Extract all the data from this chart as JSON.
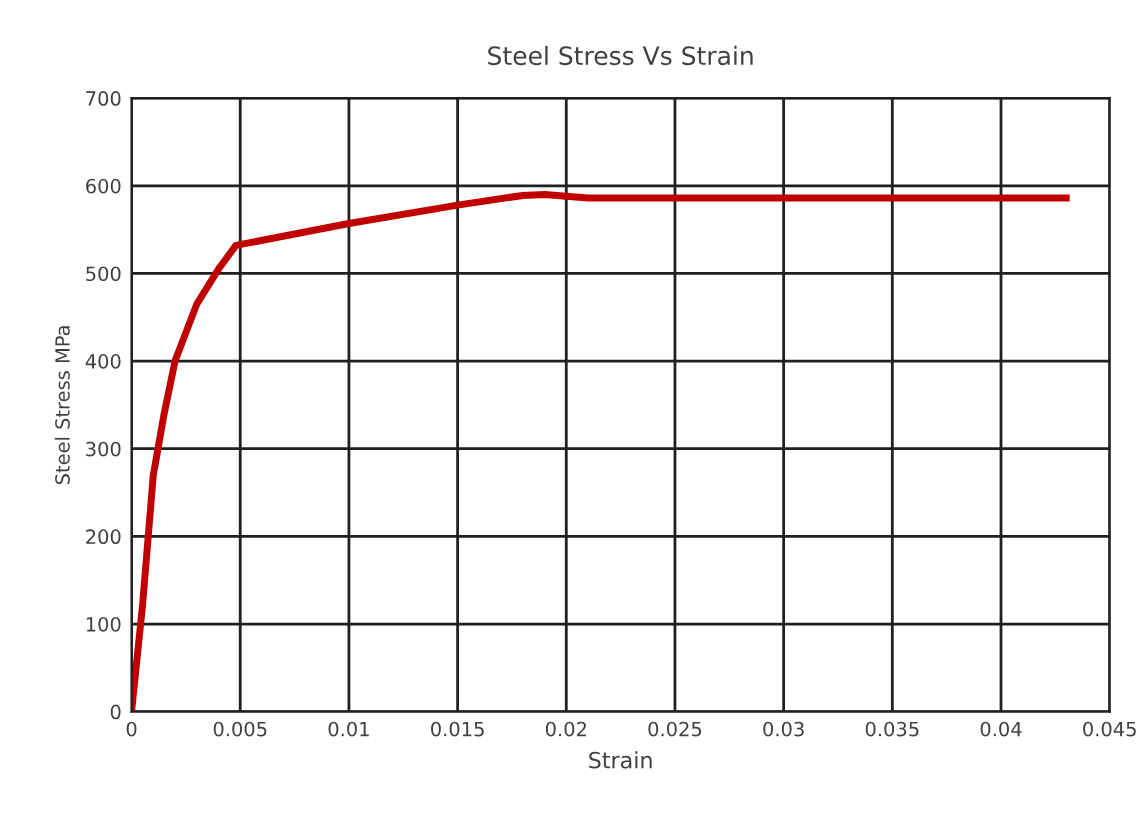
{
  "chart_data": {
    "type": "line",
    "title": "Steel Stress Vs Strain",
    "xlabel": "Strain",
    "ylabel": "Steel Stress MPa",
    "x": [
      0,
      0.0005,
      0.001,
      0.0015,
      0.002,
      0.003,
      0.004,
      0.0048,
      0.01,
      0.015,
      0.018,
      0.019,
      0.02,
      0.021,
      0.025,
      0.043
    ],
    "series": [
      {
        "color": "#c00000",
        "values": [
          0,
          120,
          270,
          340,
          400,
          465,
          505,
          532,
          557,
          578,
          589,
          590,
          588,
          586,
          586,
          586
        ]
      }
    ],
    "xlim": [
      0,
      0.045
    ],
    "xticks": [
      0,
      0.005,
      0.01,
      0.015,
      0.02,
      0.025,
      0.03,
      0.035,
      0.04,
      0.045
    ],
    "ylim": [
      0,
      700
    ],
    "yticks": [
      0,
      100,
      200,
      300,
      400,
      500,
      600,
      700
    ],
    "grid": true,
    "marker": "none",
    "line_style": "solid"
  }
}
